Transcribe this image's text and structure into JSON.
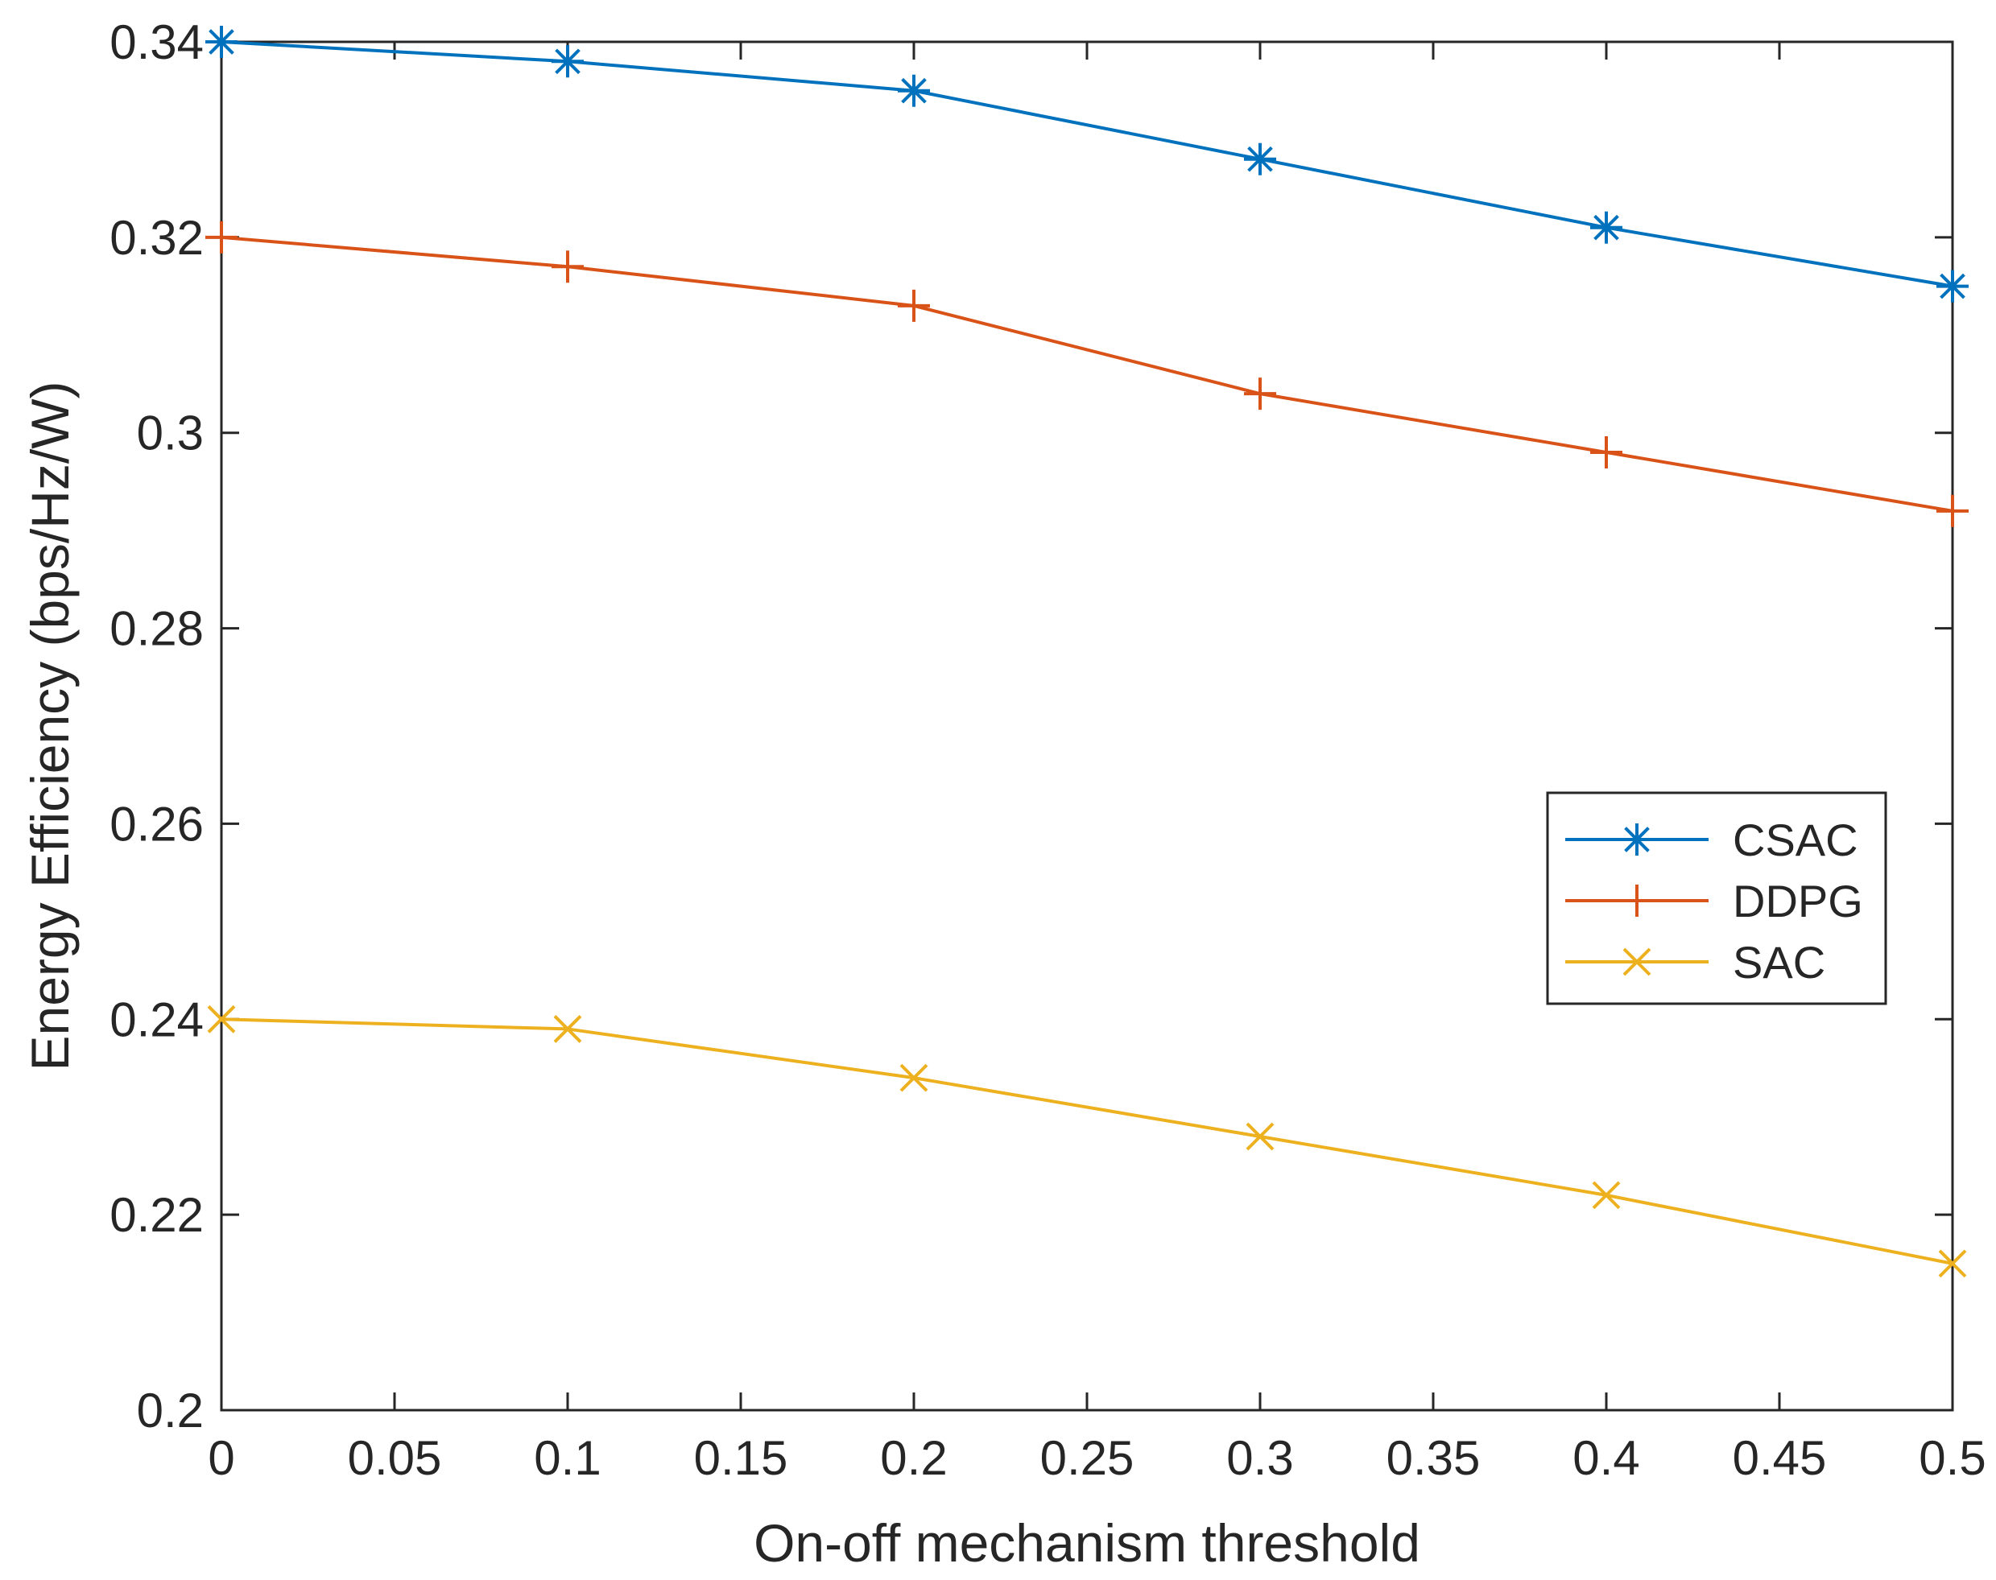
{
  "chart_data": {
    "type": "line",
    "title": "",
    "xlabel": "On-off mechanism threshold",
    "ylabel": "Energy Efficiency (bps/Hz/W)",
    "xlim": [
      0,
      0.5
    ],
    "ylim": [
      0.2,
      0.34
    ],
    "xticks": [
      0,
      0.05,
      0.1,
      0.15,
      0.2,
      0.25,
      0.3,
      0.35,
      0.4,
      0.45,
      0.5
    ],
    "xtick_labels": [
      "0",
      "0.05",
      "0.1",
      "0.15",
      "0.2",
      "0.25",
      "0.3",
      "0.35",
      "0.4",
      "0.45",
      "0.5"
    ],
    "yticks": [
      0.2,
      0.22,
      0.24,
      0.26,
      0.28,
      0.3,
      0.32,
      0.34
    ],
    "ytick_labels": [
      "0.2",
      "0.22",
      "0.24",
      "0.26",
      "0.28",
      "0.3",
      "0.32",
      "0.34"
    ],
    "grid": false,
    "legend_position": "right",
    "x": [
      0,
      0.1,
      0.2,
      0.3,
      0.4,
      0.5
    ],
    "series": [
      {
        "name": "CSAC",
        "marker": "asterisk",
        "color": "#0072BD",
        "values": [
          0.34,
          0.338,
          0.335,
          0.328,
          0.321,
          0.315
        ]
      },
      {
        "name": "DDPG",
        "marker": "plus",
        "color": "#D95319",
        "values": [
          0.32,
          0.317,
          0.313,
          0.304,
          0.298,
          0.292
        ]
      },
      {
        "name": "SAC",
        "marker": "cross",
        "color": "#EDB120",
        "values": [
          0.24,
          0.239,
          0.234,
          0.228,
          0.222,
          0.215
        ]
      }
    ]
  }
}
